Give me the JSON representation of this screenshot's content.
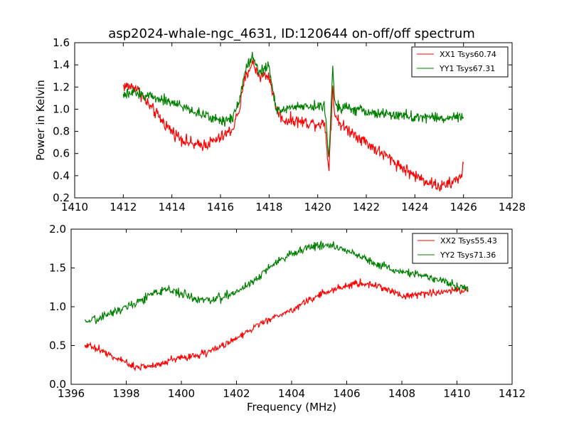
{
  "chart_data": [
    {
      "type": "line",
      "title": "asp2024-whale-ngc_4631, ID:120644 on-off/off spectrum",
      "xlabel": "",
      "ylabel": "Power in Kelvin",
      "xlim": [
        1410,
        1428
      ],
      "ylim": [
        0.2,
        1.6
      ],
      "xticks": [
        "1410",
        "1412",
        "1414",
        "1416",
        "1418",
        "1420",
        "1422",
        "1424",
        "1426",
        "1428"
      ],
      "yticks": [
        "0.2",
        "0.4",
        "0.6",
        "0.8",
        "1.0",
        "1.2",
        "1.4",
        "1.6"
      ],
      "grid": false,
      "legend_position": "top-right",
      "series": [
        {
          "name": "XX1 Tsys60.74",
          "color": "#ff0000",
          "noise": 0.035,
          "x": [
            1412.0,
            1412.5,
            1413.0,
            1413.5,
            1414.0,
            1414.5,
            1415.0,
            1415.5,
            1416.0,
            1416.5,
            1416.8,
            1417.0,
            1417.3,
            1417.6,
            1418.0,
            1418.3,
            1418.6,
            1419.0,
            1419.5,
            1420.0,
            1420.3,
            1420.45,
            1420.55,
            1420.62,
            1420.7,
            1421.0,
            1421.5,
            1422.0,
            1422.5,
            1423.0,
            1423.5,
            1424.0,
            1424.5,
            1425.0,
            1425.5,
            1425.9,
            1426.0
          ],
          "y": [
            1.21,
            1.2,
            1.05,
            0.92,
            0.8,
            0.72,
            0.67,
            0.69,
            0.74,
            0.82,
            1.02,
            1.27,
            1.42,
            1.3,
            1.3,
            1.0,
            0.9,
            0.9,
            0.88,
            0.87,
            0.87,
            0.45,
            0.85,
            1.22,
            0.95,
            0.85,
            0.78,
            0.7,
            0.62,
            0.55,
            0.47,
            0.4,
            0.35,
            0.3,
            0.33,
            0.4,
            0.5
          ]
        },
        {
          "name": "YY1 Tsys67.31",
          "color": "#007f00",
          "noise": 0.03,
          "x": [
            1412.0,
            1412.5,
            1413.0,
            1413.5,
            1414.0,
            1414.5,
            1415.0,
            1415.5,
            1416.0,
            1416.5,
            1416.8,
            1417.0,
            1417.3,
            1417.6,
            1418.0,
            1418.3,
            1418.6,
            1419.0,
            1419.5,
            1420.0,
            1420.3,
            1420.45,
            1420.55,
            1420.62,
            1420.7,
            1421.0,
            1421.5,
            1422.0,
            1422.5,
            1423.0,
            1423.5,
            1424.0,
            1424.5,
            1425.0,
            1425.5,
            1426.0
          ],
          "y": [
            1.12,
            1.15,
            1.12,
            1.1,
            1.06,
            1.02,
            0.97,
            0.93,
            0.9,
            0.92,
            1.1,
            1.35,
            1.48,
            1.35,
            1.38,
            0.98,
            1.0,
            1.02,
            1.03,
            1.03,
            1.01,
            0.55,
            1.0,
            1.42,
            1.05,
            1.02,
            1.0,
            0.97,
            0.96,
            0.95,
            0.94,
            0.93,
            0.93,
            0.92,
            0.92,
            0.93
          ]
        }
      ]
    },
    {
      "type": "line",
      "title": "",
      "xlabel": "Frequency (MHz)",
      "ylabel": "",
      "xlim": [
        1396,
        1412
      ],
      "ylim": [
        0.0,
        2.0
      ],
      "xticks": [
        "1396",
        "1398",
        "1400",
        "1402",
        "1404",
        "1406",
        "1408",
        "1410",
        "1412"
      ],
      "yticks": [
        "0.0",
        "0.5",
        "1.0",
        "1.5",
        "2.0"
      ],
      "grid": false,
      "legend_position": "top-right",
      "series": [
        {
          "name": "XX2 Tsys55.43",
          "color": "#ff0000",
          "noise": 0.03,
          "x": [
            1396.5,
            1397.0,
            1397.5,
            1398.0,
            1398.5,
            1399.0,
            1399.5,
            1400.0,
            1400.5,
            1401.0,
            1401.5,
            1402.0,
            1402.5,
            1403.0,
            1403.5,
            1404.0,
            1404.5,
            1405.0,
            1405.5,
            1406.0,
            1406.5,
            1407.0,
            1407.5,
            1408.0,
            1408.5,
            1409.0,
            1409.5,
            1410.0,
            1410.4
          ],
          "y": [
            0.52,
            0.45,
            0.36,
            0.27,
            0.22,
            0.24,
            0.3,
            0.35,
            0.37,
            0.42,
            0.5,
            0.6,
            0.7,
            0.8,
            0.88,
            0.96,
            1.06,
            1.15,
            1.22,
            1.27,
            1.3,
            1.28,
            1.22,
            1.15,
            1.15,
            1.17,
            1.2,
            1.22,
            1.2
          ]
        },
        {
          "name": "YY2 Tsys71.36",
          "color": "#007f00",
          "noise": 0.035,
          "x": [
            1396.5,
            1397.0,
            1397.5,
            1398.0,
            1398.5,
            1399.0,
            1399.5,
            1400.0,
            1400.5,
            1401.0,
            1401.5,
            1402.0,
            1402.5,
            1403.0,
            1403.5,
            1404.0,
            1404.5,
            1405.0,
            1405.5,
            1406.0,
            1406.5,
            1407.0,
            1407.5,
            1408.0,
            1408.5,
            1409.0,
            1409.5,
            1410.0,
            1410.4
          ],
          "y": [
            0.78,
            0.85,
            0.93,
            1.0,
            1.08,
            1.17,
            1.22,
            1.18,
            1.1,
            1.08,
            1.12,
            1.2,
            1.3,
            1.45,
            1.58,
            1.68,
            1.75,
            1.8,
            1.78,
            1.72,
            1.65,
            1.57,
            1.5,
            1.45,
            1.42,
            1.38,
            1.33,
            1.27,
            1.22
          ]
        }
      ]
    }
  ]
}
